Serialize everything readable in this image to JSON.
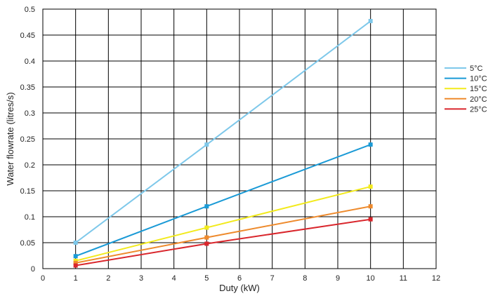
{
  "chart_data": {
    "type": "line",
    "title": "",
    "xlabel": "Duty (kW)",
    "ylabel": "Water flowrate (litres/s)",
    "xlim": [
      0,
      12
    ],
    "ylim": [
      0,
      0.5
    ],
    "x_ticks": [
      "0",
      "1",
      "2",
      "3",
      "4",
      "5",
      "6",
      "7",
      "8",
      "9",
      "10",
      "11",
      "12"
    ],
    "y_ticks": [
      "0",
      "0.05",
      "0.1",
      "0.15",
      "0.2",
      "0.25",
      "0.3",
      "0.35",
      "0.4",
      "0.45",
      "0.5"
    ],
    "grid": true,
    "legend_position": "right",
    "x": [
      1,
      5,
      10
    ],
    "series": [
      {
        "name": "5°C",
        "color": "#7ec8ea",
        "values": [
          0.05,
          0.239,
          0.477
        ]
      },
      {
        "name": "10°C",
        "color": "#1a9ad6",
        "values": [
          0.024,
          0.12,
          0.239
        ]
      },
      {
        "name": "15°C",
        "color": "#f2ea1c",
        "values": [
          0.015,
          0.079,
          0.158
        ]
      },
      {
        "name": "20°C",
        "color": "#ee8a2c",
        "values": [
          0.011,
          0.06,
          0.12
        ]
      },
      {
        "name": "25°C",
        "color": "#d9262c",
        "values": [
          0.006,
          0.048,
          0.095
        ]
      }
    ]
  }
}
